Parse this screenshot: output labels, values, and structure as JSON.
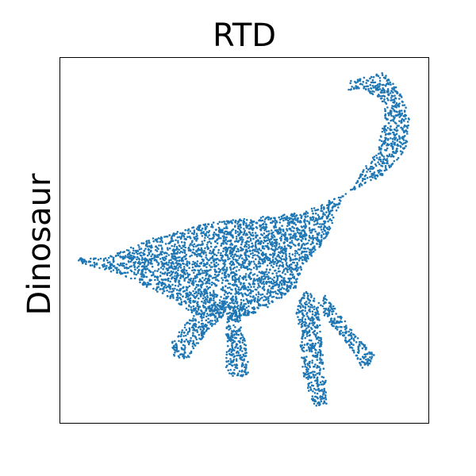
{
  "chart_data": {
    "type": "scatter",
    "title": "RTD",
    "xlabel": "",
    "ylabel": "Dinosaur",
    "ylim": [
      0,
      100
    ],
    "xlim": [
      0,
      100
    ],
    "x_ticks": [],
    "y_ticks": [],
    "grid": false,
    "legend": "none",
    "point_color": "#1f77b4",
    "shape_description_parts": [
      {
        "part": "tail_torso",
        "polygon": [
          [
            4.7,
            45.2
          ],
          [
            12,
            45
          ],
          [
            25,
            50.5
          ],
          [
            40,
            54.8
          ],
          [
            55,
            56.5
          ],
          [
            65,
            57.5
          ],
          [
            70,
            59.5
          ],
          [
            80,
            64
          ],
          [
            88,
            68
          ],
          [
            94,
            75
          ],
          [
            95,
            84
          ],
          [
            92,
            91
          ],
          [
            88,
            96
          ],
          [
            84,
            95
          ],
          [
            79,
            94
          ],
          [
            78,
            91
          ],
          [
            82,
            91.5
          ],
          [
            87,
            89
          ],
          [
            88,
            83
          ],
          [
            86,
            74
          ],
          [
            82,
            69
          ],
          [
            76,
            60
          ],
          [
            72,
            50
          ],
          [
            66,
            43
          ],
          [
            64,
            37
          ],
          [
            57,
            32
          ],
          [
            48,
            28
          ],
          [
            36,
            30
          ],
          [
            30,
            34
          ],
          [
            26,
            36
          ],
          [
            18,
            40
          ],
          [
            12,
            42
          ],
          [
            4.7,
            44
          ]
        ]
      },
      {
        "part": "front_leg_left",
        "polygon": [
          [
            66,
            36
          ],
          [
            64,
            31
          ],
          [
            65,
            24
          ],
          [
            66,
            13
          ],
          [
            69,
            4.5
          ],
          [
            72.5,
            5
          ],
          [
            72,
            13
          ],
          [
            71,
            22
          ],
          [
            70,
            32
          ],
          [
            68,
            36
          ]
        ]
      },
      {
        "part": "front_leg_right",
        "polygon": [
          [
            70,
            33
          ],
          [
            72,
            29
          ],
          [
            76,
            24
          ],
          [
            80,
            19
          ],
          [
            82,
            15
          ],
          [
            84,
            16
          ],
          [
            85.5,
            19
          ],
          [
            82,
            22
          ],
          [
            78,
            27
          ],
          [
            75,
            31
          ],
          [
            72,
            35
          ]
        ]
      },
      {
        "part": "hind_leg_left",
        "polygon": [
          [
            48,
            33
          ],
          [
            45,
            27
          ],
          [
            45,
            22
          ],
          [
            45,
            14
          ],
          [
            47,
            12.5
          ],
          [
            51,
            13
          ],
          [
            51,
            17
          ],
          [
            50,
            24
          ],
          [
            49,
            30
          ],
          [
            51,
            33
          ]
        ]
      },
      {
        "part": "hind_leg_right",
        "polygon": [
          [
            41,
            33
          ],
          [
            37,
            30
          ],
          [
            33,
            26
          ],
          [
            30,
            22
          ],
          [
            31,
            18
          ],
          [
            35,
            17.5
          ],
          [
            37,
            21
          ],
          [
            40,
            25
          ],
          [
            44,
            29
          ],
          [
            46,
            32
          ]
        ]
      }
    ]
  }
}
